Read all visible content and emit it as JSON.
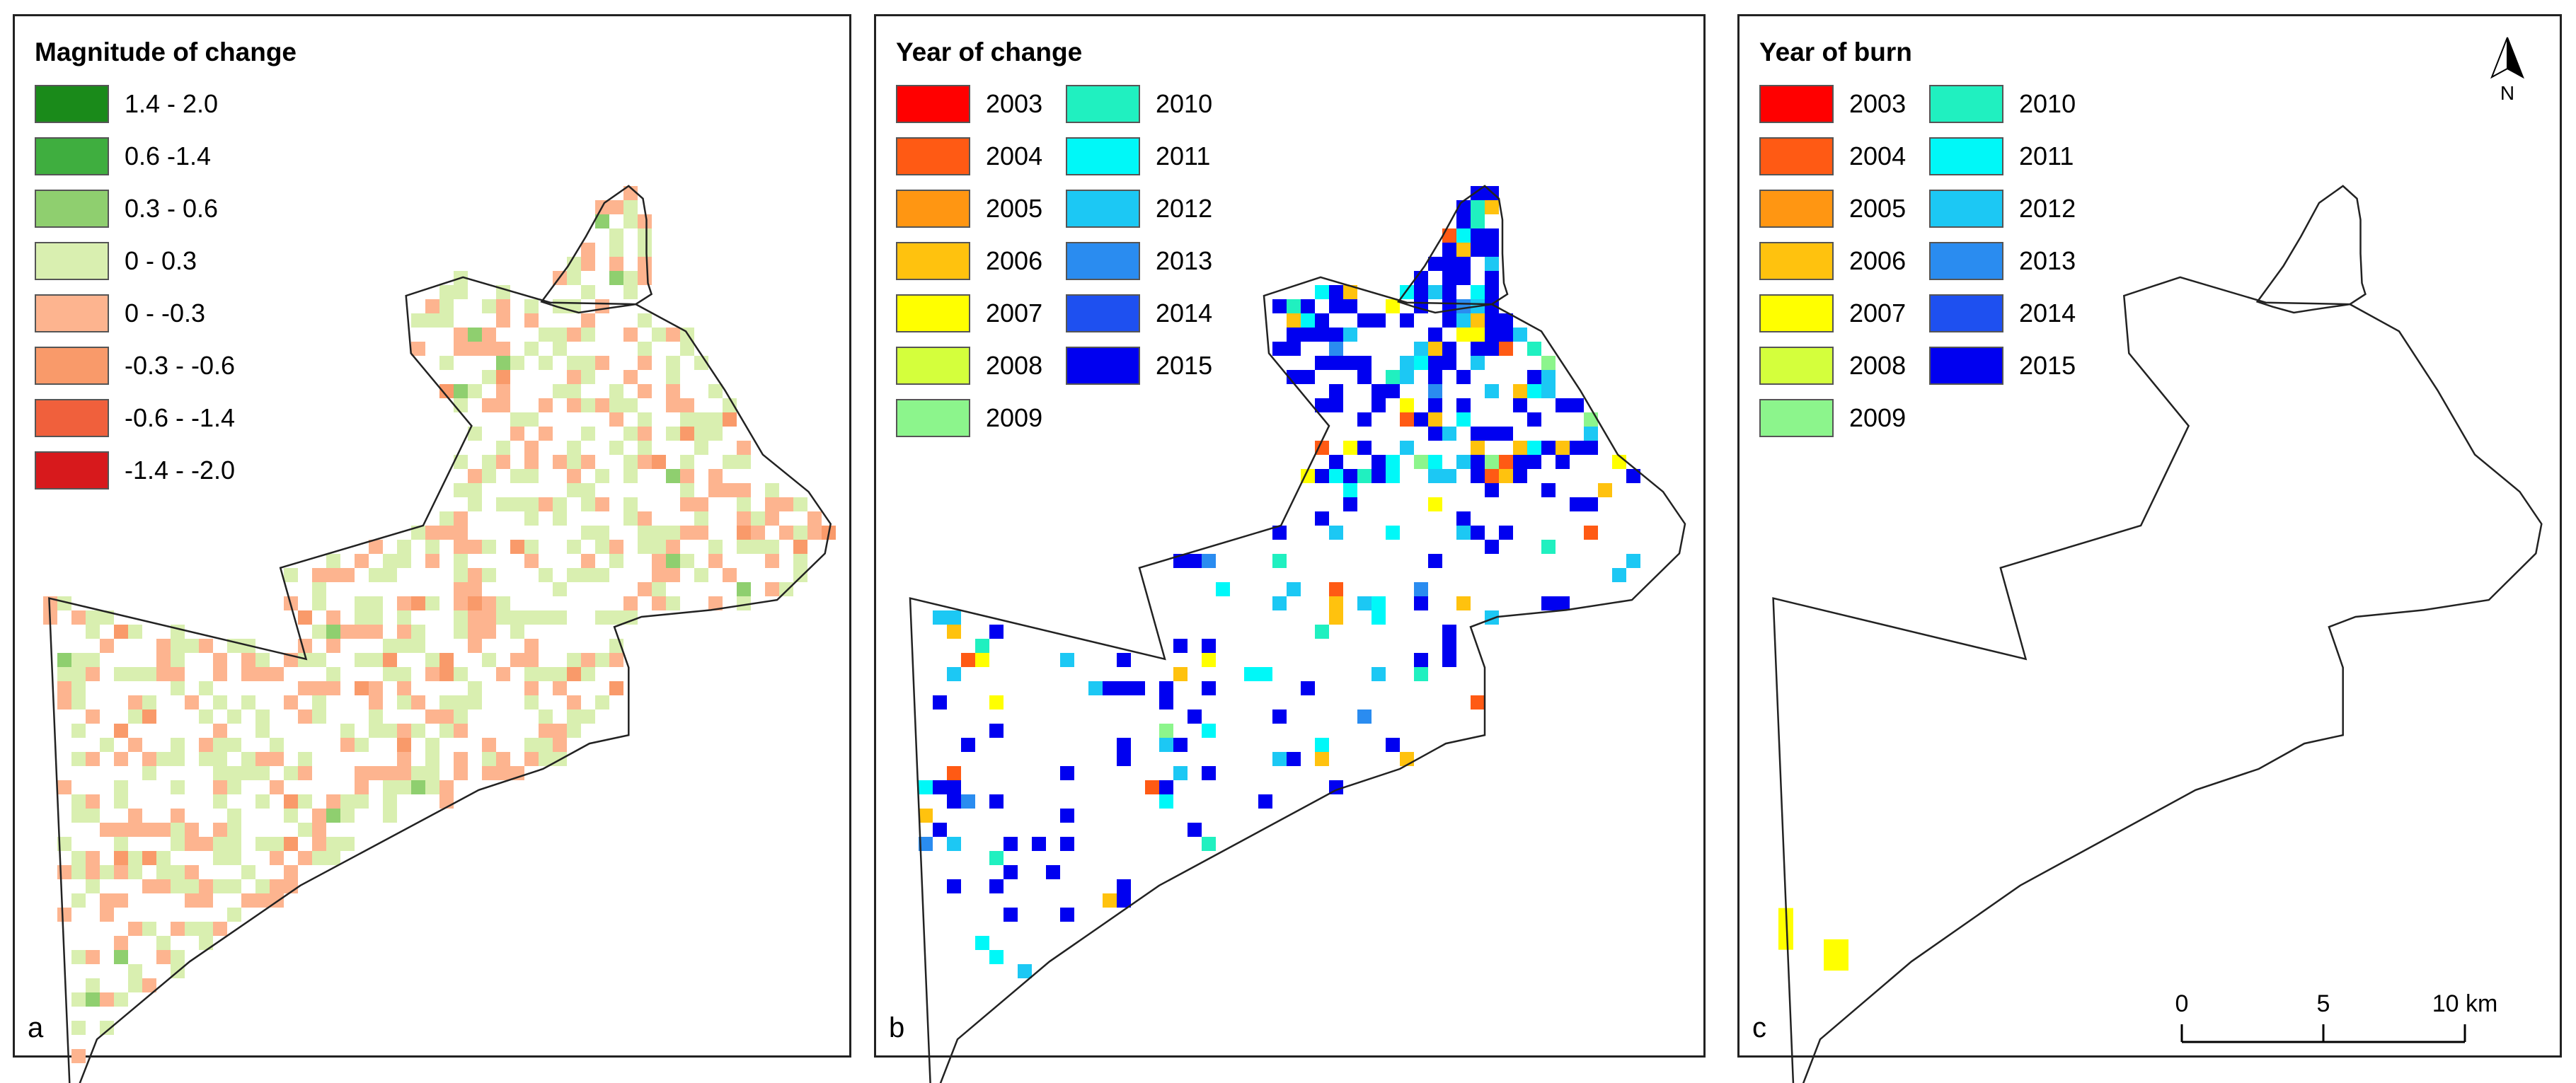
{
  "panels": [
    {
      "letter": "a",
      "legend_title": "Magnitude of change",
      "legend": [
        {
          "label": "1.4 - 2.0",
          "color": "#1a8a1a"
        },
        {
          "label": "0.6 -1.4",
          "color": "#3fae3f"
        },
        {
          "label": "0.3 - 0.6",
          "color": "#8fcf6f"
        },
        {
          "label": "0 - 0.3",
          "color": "#d9efb0"
        },
        {
          "label": "0 - -0.3",
          "color": "#fdb48f"
        },
        {
          "label": "-0.3 - -0.6",
          "color": "#f99a6a"
        },
        {
          "label": "-0.6 - -1.4",
          "color": "#f0603c"
        },
        {
          "label": "-1.4 - -2.0",
          "color": "#d7191c"
        }
      ]
    },
    {
      "letter": "b",
      "legend_title": "Year of change",
      "legend": [
        {
          "label": "2003",
          "color": "#ff0000"
        },
        {
          "label": "2004",
          "color": "#ff5a14"
        },
        {
          "label": "2005",
          "color": "#ff9612"
        },
        {
          "label": "2006",
          "color": "#ffc20e"
        },
        {
          "label": "2007",
          "color": "#ffff00"
        },
        {
          "label": "2008",
          "color": "#d4ff3c"
        },
        {
          "label": "2009",
          "color": "#8cf58c"
        },
        {
          "label": "2010",
          "color": "#20f0c0"
        },
        {
          "label": "2011",
          "color": "#00f8f8"
        },
        {
          "label": "2012",
          "color": "#1cc8f4"
        },
        {
          "label": "2013",
          "color": "#2a8cf0"
        },
        {
          "label": "2014",
          "color": "#1e50f0"
        },
        {
          "label": "2015",
          "color": "#0000f0"
        }
      ]
    },
    {
      "letter": "c",
      "legend_title": "Year of burn",
      "legend": [
        {
          "label": "2003",
          "color": "#ff0000"
        },
        {
          "label": "2004",
          "color": "#ff5a14"
        },
        {
          "label": "2005",
          "color": "#ff9612"
        },
        {
          "label": "2006",
          "color": "#ffc20e"
        },
        {
          "label": "2007",
          "color": "#ffff00"
        },
        {
          "label": "2008",
          "color": "#d4ff3c"
        },
        {
          "label": "2009",
          "color": "#8cf58c"
        },
        {
          "label": "2010",
          "color": "#20f0c0"
        },
        {
          "label": "2011",
          "color": "#00f8f8"
        },
        {
          "label": "2012",
          "color": "#1cc8f4"
        },
        {
          "label": "2013",
          "color": "#2a8cf0"
        },
        {
          "label": "2014",
          "color": "#1e50f0"
        },
        {
          "label": "2015",
          "color": "#0000f0"
        }
      ]
    }
  ],
  "north_arrow_label": "N",
  "scale_bar": {
    "ticks": [
      "0",
      "5",
      "10 km"
    ]
  },
  "burn_color": "#ffff00"
}
